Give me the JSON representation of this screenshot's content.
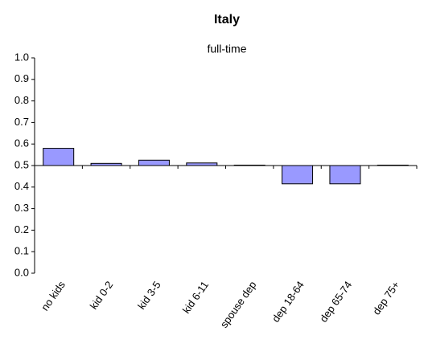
{
  "chart_data": {
    "type": "bar",
    "title": "Italy",
    "subtitle": "full-time",
    "categories": [
      "no kids",
      "kid 0-2",
      "kid 3-5",
      "kid 6-11",
      "spouse dep",
      "dep 18-64",
      "dep 65-74",
      "dep 75+"
    ],
    "values": [
      0.58,
      0.51,
      0.525,
      0.512,
      0.502,
      0.415,
      0.415,
      0.502
    ],
    "color": "#9999ff",
    "baseline": 0.5,
    "ylim": [
      0,
      1
    ],
    "yticks": [
      {
        "value": 0,
        "label": "0.0"
      },
      0.1,
      0.2,
      0.3,
      0.4,
      0.5,
      0.6,
      0.7,
      0.8,
      0.9,
      {
        "value": 1,
        "label": "1.0"
      }
    ]
  }
}
